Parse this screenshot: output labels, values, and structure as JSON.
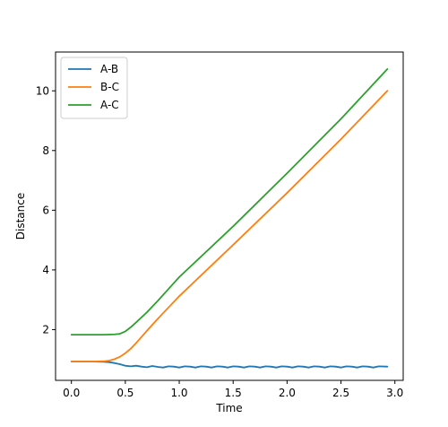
{
  "chart_data": {
    "type": "line",
    "title": "",
    "xlabel": "Time",
    "ylabel": "Distance",
    "xlim": [
      -0.147,
      3.077
    ],
    "ylim": [
      0.3,
      11.3
    ],
    "xticks": [
      0.0,
      0.5,
      1.0,
      1.5,
      2.0,
      2.5,
      3.0
    ],
    "xtick_labels": [
      "0.0",
      "0.5",
      "1.0",
      "1.5",
      "2.0",
      "2.5",
      "3.0"
    ],
    "yticks": [
      2,
      4,
      6,
      8,
      10
    ],
    "ytick_labels": [
      "2",
      "4",
      "6",
      "8",
      "10"
    ],
    "grid": false,
    "legend_position": "top-left",
    "series": [
      {
        "name": "A-B",
        "color": "#1f77b4",
        "x": [
          0.0,
          0.1,
          0.2,
          0.3,
          0.35,
          0.4,
          0.45,
          0.5,
          0.55,
          0.6,
          0.65,
          0.7,
          0.75,
          0.8,
          0.85,
          0.9,
          0.95,
          1.0,
          1.05,
          1.1,
          1.15,
          1.2,
          1.25,
          1.3,
          1.35,
          1.4,
          1.45,
          1.5,
          1.55,
          1.6,
          1.65,
          1.7,
          1.75,
          1.8,
          1.85,
          1.9,
          1.95,
          2.0,
          2.05,
          2.1,
          2.15,
          2.2,
          2.25,
          2.3,
          2.35,
          2.4,
          2.45,
          2.5,
          2.55,
          2.6,
          2.65,
          2.7,
          2.75,
          2.8,
          2.85,
          2.93
        ],
        "y": [
          0.93,
          0.93,
          0.93,
          0.92,
          0.91,
          0.88,
          0.84,
          0.79,
          0.77,
          0.79,
          0.76,
          0.74,
          0.78,
          0.75,
          0.73,
          0.77,
          0.76,
          0.73,
          0.77,
          0.76,
          0.73,
          0.77,
          0.76,
          0.73,
          0.77,
          0.76,
          0.73,
          0.77,
          0.76,
          0.73,
          0.77,
          0.76,
          0.73,
          0.77,
          0.76,
          0.73,
          0.77,
          0.76,
          0.73,
          0.77,
          0.76,
          0.73,
          0.77,
          0.76,
          0.73,
          0.77,
          0.76,
          0.73,
          0.77,
          0.76,
          0.73,
          0.77,
          0.76,
          0.73,
          0.77,
          0.76
        ]
      },
      {
        "name": "B-C",
        "color": "#ff7f0e",
        "x": [
          0.0,
          0.1,
          0.2,
          0.3,
          0.35,
          0.4,
          0.45,
          0.5,
          0.55,
          0.6,
          0.7,
          0.8,
          0.9,
          1.0,
          1.5,
          2.0,
          2.5,
          2.93
        ],
        "y": [
          0.93,
          0.93,
          0.93,
          0.94,
          0.96,
          1.01,
          1.09,
          1.21,
          1.36,
          1.55,
          1.96,
          2.36,
          2.74,
          3.12,
          4.84,
          6.58,
          8.38,
          10.0
        ],
        "note_ignore": ""
      },
      {
        "name": "A-C",
        "color": "#2ca02c",
        "x": [
          0.0,
          0.1,
          0.2,
          0.3,
          0.4,
          0.45,
          0.5,
          0.55,
          0.6,
          0.7,
          0.8,
          0.9,
          1.0,
          1.5,
          2.0,
          2.5,
          2.93
        ],
        "y": [
          1.83,
          1.83,
          1.83,
          1.83,
          1.84,
          1.86,
          1.94,
          2.08,
          2.24,
          2.58,
          2.96,
          3.36,
          3.76,
          5.46,
          7.24,
          9.06,
          10.73
        ]
      }
    ]
  }
}
